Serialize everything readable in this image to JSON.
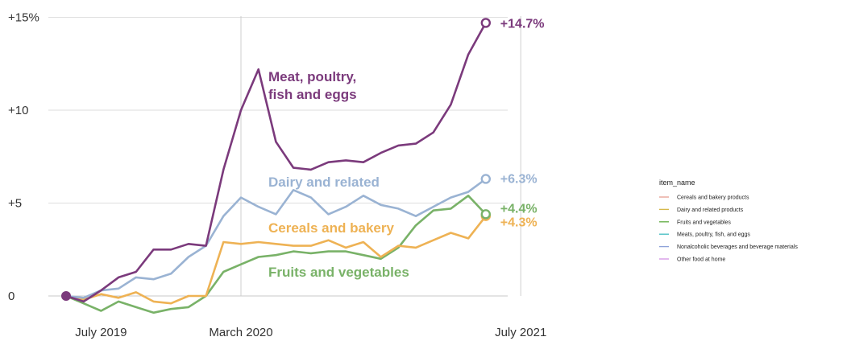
{
  "chart_data": {
    "type": "line",
    "y_ticks": [
      {
        "value": 15,
        "label": "+15%"
      },
      {
        "value": 10,
        "label": "+10"
      },
      {
        "value": 5,
        "label": "+5"
      },
      {
        "value": 0,
        "label": "0"
      }
    ],
    "ylim": [
      -1.3,
      15.5
    ],
    "x_ticks": [
      {
        "index": 2,
        "label": "July 2019"
      },
      {
        "index": 10,
        "label": "March 2020"
      },
      {
        "index": 26,
        "label": "July 2021"
      }
    ],
    "x_reference_lines": [
      10,
      26
    ],
    "grid": true,
    "series": [
      {
        "name": "Meat, poultry, fish and eggs",
        "color": "#7b3a7c",
        "values": [
          0,
          -0.3,
          0.3,
          1.0,
          1.3,
          2.5,
          2.5,
          2.8,
          2.7,
          6.8,
          10.0,
          12.2,
          8.3,
          6.9,
          6.8,
          7.2,
          7.3,
          7.2,
          7.7,
          8.1,
          8.2,
          8.8,
          10.3,
          13.0,
          14.7
        ],
        "end_label": "+14.7%"
      },
      {
        "name": "Dairy and related",
        "color": "#9ab3d3",
        "values": [
          0,
          -0.1,
          0.3,
          0.4,
          1.0,
          0.9,
          1.2,
          2.1,
          2.7,
          4.3,
          5.3,
          4.8,
          4.4,
          5.7,
          5.3,
          4.4,
          4.8,
          5.4,
          4.9,
          4.7,
          4.3,
          4.8,
          5.3,
          5.6,
          6.3
        ],
        "end_label": "+6.3%"
      },
      {
        "name": "Cereals and bakery",
        "color": "#eeb254",
        "values": [
          0,
          -0.2,
          0.1,
          -0.1,
          0.2,
          -0.3,
          -0.4,
          0,
          0,
          2.9,
          2.8,
          2.9,
          2.8,
          2.7,
          2.7,
          3.0,
          2.6,
          2.9,
          2.1,
          2.7,
          2.6,
          3.0,
          3.4,
          3.1,
          4.3
        ],
        "end_label": "+4.3%"
      },
      {
        "name": "Fruits and vegetables",
        "color": "#79b268",
        "values": [
          0,
          -0.4,
          -0.8,
          -0.3,
          -0.6,
          -0.9,
          -0.7,
          -0.6,
          0,
          1.3,
          1.7,
          2.1,
          2.2,
          2.4,
          2.3,
          2.4,
          2.4,
          2.2,
          2.0,
          2.6,
          3.8,
          4.6,
          4.7,
          5.4,
          4.4
        ],
        "end_label": "+4.4%"
      }
    ],
    "annotations": [
      {
        "series": 0,
        "lines": [
          "Meat, poultry,",
          "fish and eggs"
        ]
      },
      {
        "series": 1,
        "lines": [
          "Dairy and related"
        ]
      },
      {
        "series": 2,
        "lines": [
          "Cereals and bakery"
        ]
      },
      {
        "series": 3,
        "lines": [
          "Fruits and vegetables"
        ]
      }
    ],
    "start_marker_color": "#7b3a7c",
    "legend": {
      "title": "item_name",
      "placement": "right",
      "items": [
        {
          "label": "Cereals and bakery products",
          "color": "#e8a49a"
        },
        {
          "label": "Dairy and related products",
          "color": "#d6b84a"
        },
        {
          "label": "Fruits and vegetables",
          "color": "#6ab04c"
        },
        {
          "label": "Meats, poultry, fish, and eggs",
          "color": "#4fc1c4"
        },
        {
          "label": "Nonalcoholic beverages and beverage materials",
          "color": "#8fa3d9"
        },
        {
          "label": "Other food at home",
          "color": "#d79be6"
        }
      ]
    }
  }
}
